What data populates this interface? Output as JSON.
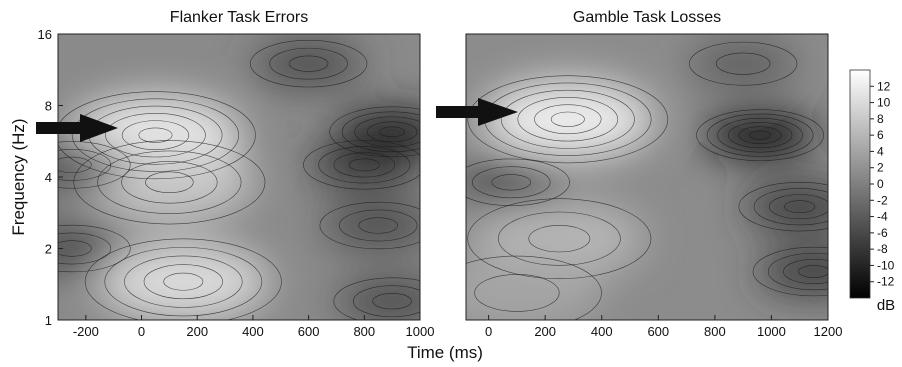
{
  "chart_data": [
    {
      "type": "heatmap",
      "title": "Flanker Task Errors",
      "xlabel": "",
      "ylabel": "Frequency (Hz)",
      "xlim": [
        -300,
        1000
      ],
      "ylim": [
        1,
        16
      ],
      "yscale": "log",
      "xticks": [
        -200,
        0,
        200,
        400,
        600,
        800,
        1000
      ],
      "yticks": [
        1,
        2,
        4,
        8,
        16
      ],
      "contour_lines": true,
      "colormap": "grayscale",
      "hotspots": [
        {
          "time": 50,
          "freq": 6.0,
          "value": 12
        },
        {
          "time": 100,
          "freq": 3.8,
          "value": 8
        },
        {
          "time": 150,
          "freq": 1.45,
          "value": 10
        },
        {
          "time": -250,
          "freq": 4.5,
          "value": -6
        },
        {
          "time": -250,
          "freq": 2.0,
          "value": -6
        },
        {
          "time": 900,
          "freq": 6.2,
          "value": -10
        },
        {
          "time": 800,
          "freq": 4.5,
          "value": -8
        },
        {
          "time": 850,
          "freq": 2.5,
          "value": -6
        },
        {
          "time": 900,
          "freq": 1.2,
          "value": -6
        },
        {
          "time": 600,
          "freq": 12,
          "value": -6
        }
      ],
      "annotation": {
        "type": "arrow",
        "time": -50,
        "freq": 6.2
      }
    },
    {
      "type": "heatmap",
      "title": "Gamble Task Losses",
      "xlabel": "",
      "ylabel": "",
      "xlim": [
        -80,
        1200
      ],
      "ylim": [
        1,
        16
      ],
      "yscale": "log",
      "xticks": [
        0,
        200,
        400,
        600,
        800,
        1000,
        1200
      ],
      "yticks": [
        1,
        2,
        4,
        8,
        16
      ],
      "contour_lines": true,
      "colormap": "grayscale",
      "hotspots": [
        {
          "time": 280,
          "freq": 7.0,
          "value": 12
        },
        {
          "time": 250,
          "freq": 2.2,
          "value": 6
        },
        {
          "time": 100,
          "freq": 1.3,
          "value": 4
        },
        {
          "time": 960,
          "freq": 6.0,
          "value": -12
        },
        {
          "time": 1100,
          "freq": 3.0,
          "value": -8
        },
        {
          "time": 1150,
          "freq": 1.6,
          "value": -8
        },
        {
          "time": 80,
          "freq": 3.8,
          "value": -6
        },
        {
          "time": 900,
          "freq": 12,
          "value": -4
        }
      ],
      "annotation": {
        "type": "arrow",
        "time": 100,
        "freq": 7.0
      }
    }
  ],
  "shared": {
    "xlabel": "Time (ms)",
    "colorbar": {
      "label": "dB",
      "ticks": [
        12,
        10,
        8,
        6,
        4,
        2,
        0,
        -2,
        -4,
        -6,
        -8,
        -10,
        -12
      ],
      "tick_labels": [
        "12",
        "10",
        "8",
        "6",
        "4",
        "2",
        "0",
        "-2",
        "-4",
        "-6",
        "-8",
        "-10",
        "-12"
      ],
      "range": [
        -14,
        14
      ]
    }
  }
}
